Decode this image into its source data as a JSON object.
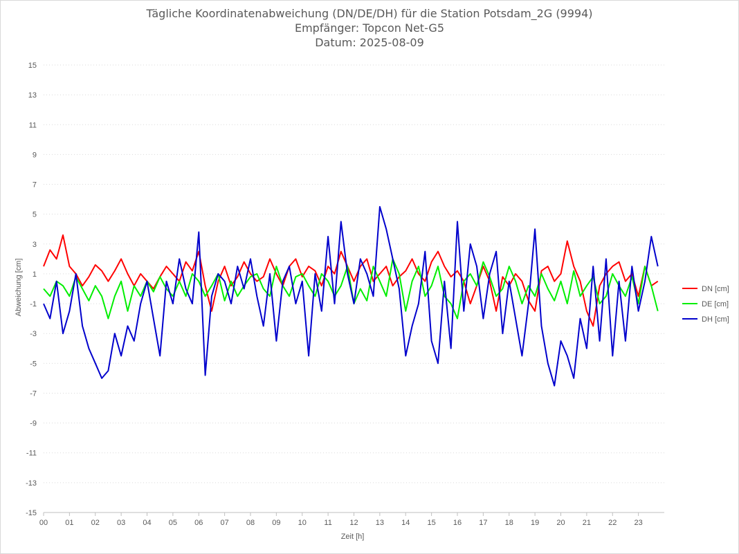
{
  "chart_data": {
    "type": "line",
    "title": "Tägliche Koordinatenabweichung (DN/DE/DH) für die Station Potsdam_2G (9994)",
    "subtitle_1": "Empfänger: Topcon Net-G5",
    "subtitle_2": "Datum: 2025-08-09",
    "xlabel": "Zeit [h]",
    "ylabel": "Abweichung [cm]",
    "x_ticks": [
      "00",
      "01",
      "02",
      "03",
      "04",
      "05",
      "06",
      "07",
      "08",
      "09",
      "10",
      "11",
      "12",
      "13",
      "14",
      "15",
      "16",
      "17",
      "18",
      "19",
      "20",
      "21",
      "22",
      "23"
    ],
    "xlim": [
      0,
      24
    ],
    "ylim": [
      -15,
      15
    ],
    "y_ticks": [
      15,
      13,
      11,
      9,
      7,
      5,
      3,
      1,
      -1,
      -3,
      -5,
      -7,
      -9,
      -11,
      -13,
      -15
    ],
    "grid": "horizontal dotted",
    "legend_position": "right",
    "x_hours": [
      0.0,
      0.25,
      0.5,
      0.75,
      1.0,
      1.25,
      1.5,
      1.75,
      2.0,
      2.25,
      2.5,
      2.75,
      3.0,
      3.25,
      3.5,
      3.75,
      4.0,
      4.25,
      4.5,
      4.75,
      5.0,
      5.25,
      5.5,
      5.75,
      6.0,
      6.25,
      6.5,
      6.75,
      7.0,
      7.25,
      7.5,
      7.75,
      8.0,
      8.25,
      8.5,
      8.75,
      9.0,
      9.25,
      9.5,
      9.75,
      10.0,
      10.25,
      10.5,
      10.75,
      11.0,
      11.25,
      11.5,
      11.75,
      12.0,
      12.25,
      12.5,
      12.75,
      13.0,
      13.25,
      13.5,
      13.75,
      14.0,
      14.25,
      14.5,
      14.75,
      15.0,
      15.25,
      15.5,
      15.75,
      16.0,
      16.25,
      16.5,
      16.75,
      17.0,
      17.25,
      17.5,
      17.75,
      18.0,
      18.25,
      18.5,
      18.75,
      19.0,
      19.25,
      19.5,
      19.75,
      20.0,
      20.25,
      20.5,
      20.75,
      21.0,
      21.25,
      21.5,
      21.75,
      22.0,
      22.25,
      22.5,
      22.75,
      23.0,
      23.25,
      23.5,
      23.75
    ],
    "series": [
      {
        "name": "DN [cm]",
        "color": "#ff0000",
        "values": [
          1.5,
          2.6,
          2.0,
          3.6,
          1.5,
          1.0,
          0.2,
          0.8,
          1.6,
          1.2,
          0.5,
          1.2,
          2.0,
          1.0,
          0.2,
          1.0,
          0.5,
          0.0,
          0.8,
          1.5,
          1.0,
          0.5,
          1.8,
          1.2,
          2.5,
          0.2,
          -1.5,
          0.5,
          1.5,
          0.2,
          0.8,
          1.8,
          1.0,
          0.5,
          0.8,
          2.0,
          1.0,
          0.2,
          1.5,
          2.0,
          0.8,
          1.5,
          1.2,
          0.2,
          1.5,
          1.0,
          2.5,
          1.5,
          0.5,
          1.5,
          2.0,
          0.5,
          1.0,
          1.5,
          0.2,
          0.8,
          1.2,
          2.0,
          1.0,
          0.5,
          1.8,
          2.5,
          1.5,
          0.8,
          1.2,
          0.5,
          -1.0,
          0.2,
          1.5,
          0.5,
          -1.5,
          0.8,
          0.2,
          1.0,
          0.5,
          -0.8,
          -1.5,
          1.2,
          1.5,
          0.5,
          1.0,
          3.2,
          1.5,
          0.5,
          -1.5,
          -2.5,
          0.2,
          1.0,
          1.5,
          1.8,
          0.5,
          1.0,
          -0.5,
          1.5,
          0.2,
          0.5
        ]
      },
      {
        "name": "DE [cm]",
        "color": "#00ee00",
        "values": [
          0.0,
          -0.5,
          0.5,
          0.2,
          -0.5,
          0.8,
          0.0,
          -0.8,
          0.2,
          -0.5,
          -2.0,
          -0.5,
          0.5,
          -1.5,
          0.2,
          -0.5,
          0.5,
          -0.2,
          0.8,
          0.0,
          -0.5,
          0.5,
          -0.5,
          1.0,
          0.5,
          -0.5,
          0.2,
          1.0,
          -0.8,
          0.5,
          -0.5,
          0.2,
          0.8,
          1.0,
          0.0,
          -0.5,
          1.5,
          0.2,
          -0.5,
          0.8,
          1.0,
          0.2,
          -0.5,
          1.0,
          0.5,
          -0.5,
          0.2,
          1.5,
          -1.0,
          0.0,
          -0.8,
          1.5,
          0.5,
          -0.5,
          2.0,
          1.0,
          -1.5,
          0.5,
          1.5,
          -0.5,
          0.2,
          1.5,
          -0.5,
          -1.0,
          -2.0,
          0.5,
          1.0,
          0.2,
          1.8,
          0.8,
          -0.5,
          0.0,
          1.5,
          0.5,
          -1.0,
          0.2,
          -0.5,
          1.0,
          0.0,
          -0.8,
          0.5,
          -1.0,
          1.2,
          -0.5,
          0.2,
          0.8,
          -1.0,
          -0.5,
          1.0,
          0.2,
          -0.5,
          0.8,
          -1.0,
          1.5,
          0.2,
          -1.5
        ]
      },
      {
        "name": "DH [cm]",
        "color": "#0000cc",
        "values": [
          -1.0,
          -2.0,
          0.5,
          -3.0,
          -1.5,
          1.0,
          -2.5,
          -4.0,
          -5.0,
          -6.0,
          -5.5,
          -3.0,
          -4.5,
          -2.5,
          -3.5,
          -1.0,
          0.5,
          -2.0,
          -4.5,
          0.5,
          -1.0,
          2.0,
          0.0,
          -1.0,
          3.8,
          -5.8,
          -0.5,
          1.0,
          0.5,
          -1.0,
          1.5,
          0.0,
          2.0,
          -0.5,
          -2.5,
          1.0,
          -3.5,
          0.5,
          1.5,
          -1.0,
          0.5,
          -4.5,
          1.0,
          -1.5,
          3.5,
          -1.0,
          4.5,
          1.0,
          -1.0,
          2.0,
          1.0,
          -0.5,
          5.5,
          4.0,
          2.0,
          0.0,
          -4.5,
          -2.5,
          -1.0,
          2.5,
          -3.5,
          -5.0,
          0.5,
          -4.0,
          4.5,
          -1.5,
          3.0,
          1.5,
          -2.0,
          1.0,
          2.5,
          -3.0,
          0.5,
          -2.0,
          -4.5,
          -1.0,
          4.0,
          -2.5,
          -5.0,
          -6.5,
          -3.5,
          -4.5,
          -6.0,
          -2.0,
          -4.0,
          1.5,
          -3.5,
          2.0,
          -4.5,
          0.5,
          -3.5,
          1.5,
          -1.5,
          0.5,
          3.5,
          1.5
        ]
      }
    ]
  }
}
